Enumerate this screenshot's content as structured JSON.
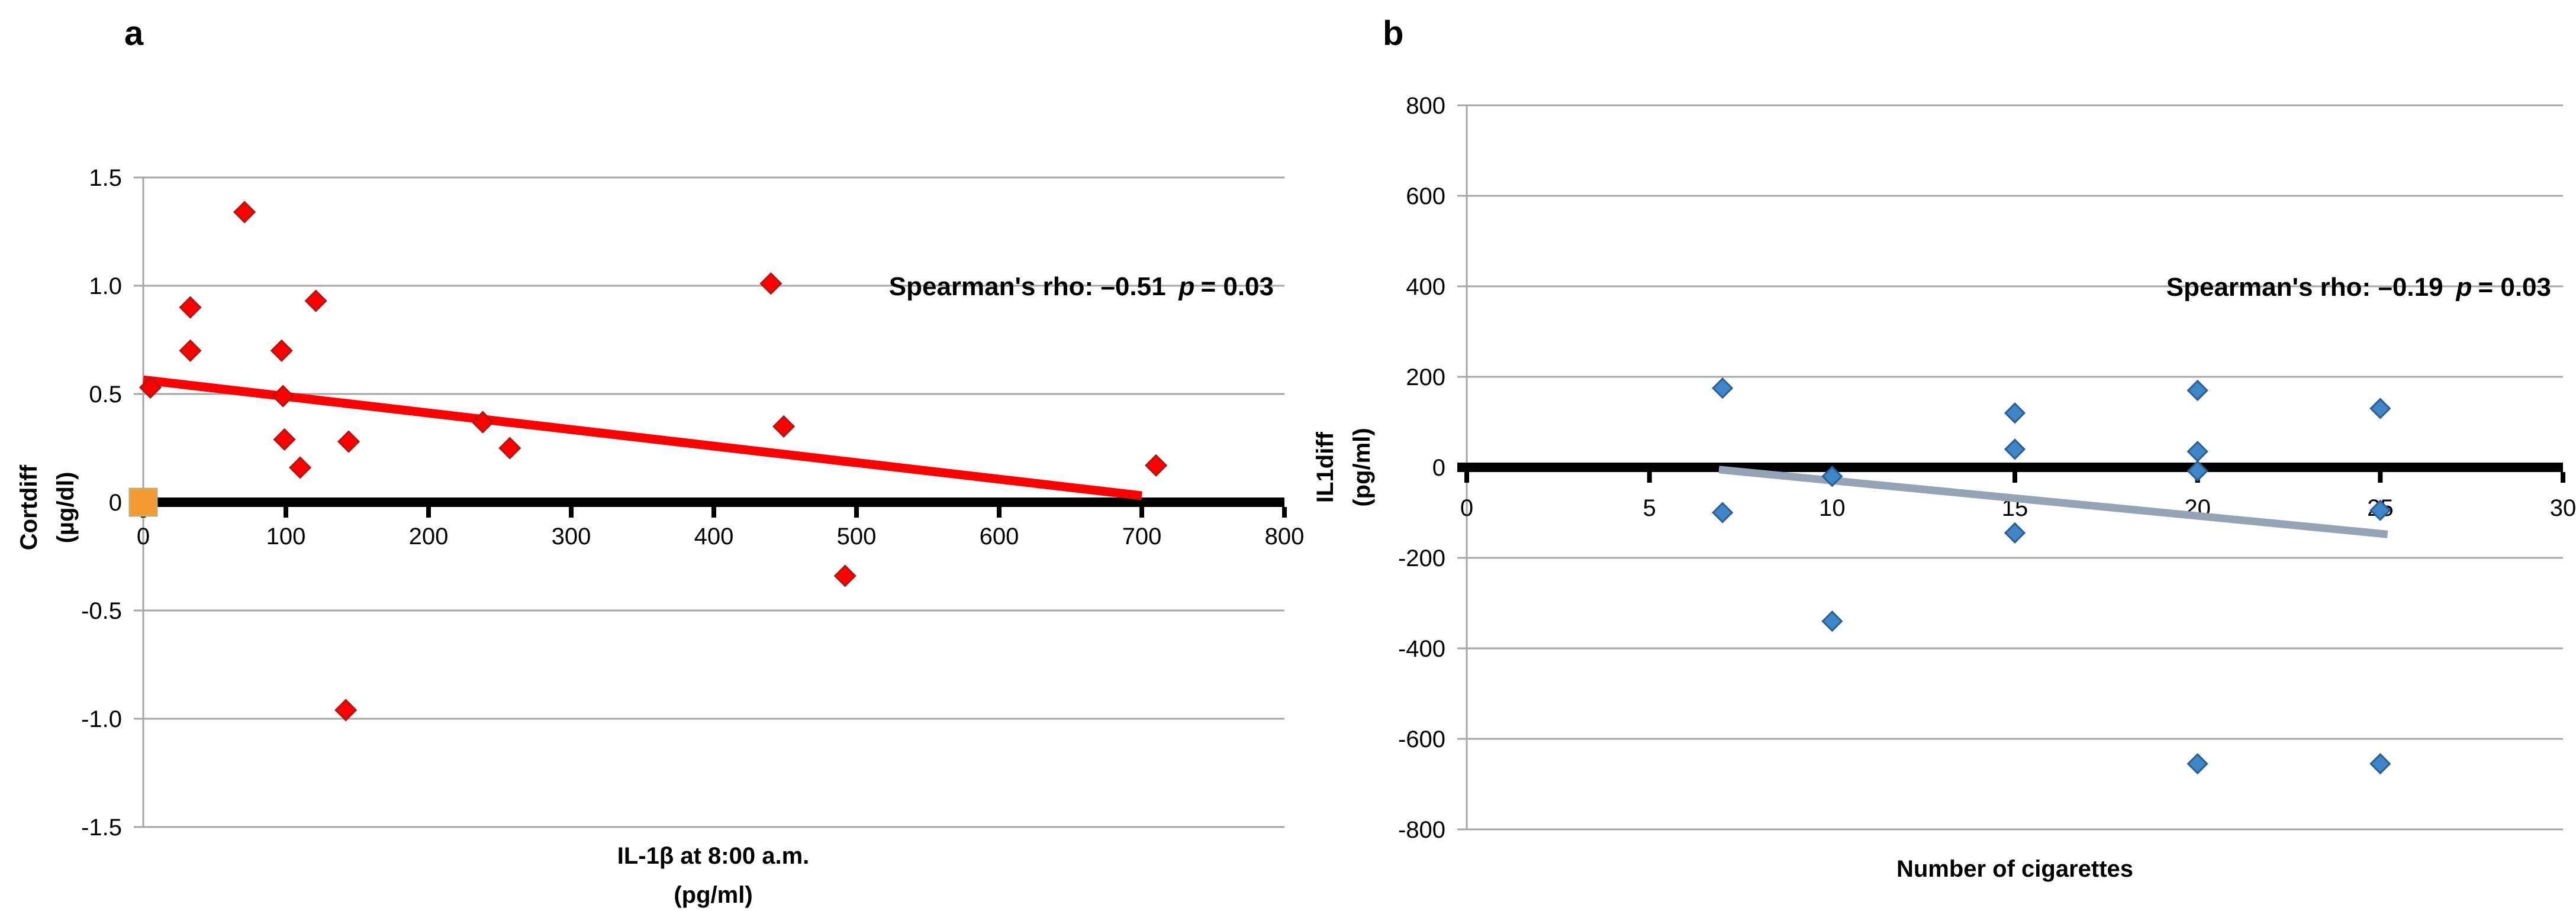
{
  "figure": {
    "background": "#FFFFFF"
  },
  "chart_data": [
    {
      "type": "scatter",
      "panel_label": "a",
      "xlabel_lines": [
        "IL-1β at 8:00 a.m.",
        "(pg/ml)"
      ],
      "ylabel_lines": [
        "Cortdiff",
        "(µg/dl)"
      ],
      "xlim": [
        0,
        800
      ],
      "ylim": [
        -1.5,
        1.5
      ],
      "x_tick_values": [
        0,
        100,
        200,
        300,
        400,
        500,
        600,
        700,
        800
      ],
      "x_tick_labels": [
        "0",
        "100",
        "200",
        "300",
        "400",
        "500",
        "600",
        "700",
        "800"
      ],
      "y_tick_values": [
        1.5,
        1.0,
        0.5,
        0,
        -0.5,
        -1.0,
        -1.5
      ],
      "y_tick_labels": [
        "1.5",
        "1.0",
        "0.5",
        "0",
        "-0.5",
        "-1.0",
        "-1.5"
      ],
      "grid": true,
      "grid_color": "#A6A6A6",
      "axis_color": "#000000",
      "legend_position": "none",
      "series": [
        {
          "name": "Cortdiff vs IL-1beta",
          "marker": "diamond",
          "color": "#FE0000",
          "border_color": "#B01712",
          "points": [
            [
              5,
              0.53
            ],
            [
              33,
              0.9
            ],
            [
              33,
              0.7
            ],
            [
              71,
              1.34
            ],
            [
              97,
              0.7
            ],
            [
              98,
              0.49
            ],
            [
              99,
              0.29
            ],
            [
              110,
              0.16
            ],
            [
              121,
              0.93
            ],
            [
              144,
              0.28
            ],
            [
              142,
              -0.96
            ],
            [
              238,
              0.37
            ],
            [
              257,
              0.25
            ],
            [
              440,
              1.01
            ],
            [
              449,
              0.35
            ],
            [
              492,
              -0.34
            ],
            [
              710,
              0.17
            ]
          ]
        },
        {
          "name": "origin square marker",
          "marker": "square",
          "color": "#F59A33",
          "border_color": "#BFAE6C",
          "points": [
            [
              0,
              0
            ]
          ]
        }
      ],
      "trendline": {
        "x1": 0,
        "y1": 0.565,
        "x2": 700,
        "y2": 0.03,
        "color": "#FF0000"
      },
      "annotation": {
        "text_prefix": "Spearman's rho: –0.51",
        "p_symbol": "p",
        "text_suffix": "= 0.03",
        "y": 1.0
      }
    },
    {
      "type": "scatter",
      "panel_label": "b",
      "xlabel_lines": [
        "Number of cigarettes"
      ],
      "ylabel_lines": [
        "IL1diff",
        "(pg/ml)"
      ],
      "xlim": [
        0,
        30
      ],
      "ylim": [
        -800,
        800
      ],
      "x_tick_values": [
        0,
        5,
        10,
        15,
        20,
        25,
        30
      ],
      "x_tick_labels": [
        "0",
        "5",
        "10",
        "15",
        "20",
        "25",
        "30"
      ],
      "y_tick_values": [
        800,
        600,
        400,
        200,
        0,
        -200,
        -400,
        -600,
        -800
      ],
      "y_tick_labels": [
        "800",
        "600",
        "400",
        "200",
        "0",
        "-200",
        "-400",
        "-600",
        "-800"
      ],
      "grid": true,
      "grid_color": "#A6A6A6",
      "axis_color": "#000000",
      "legend_position": "none",
      "series": [
        {
          "name": "IL1diff vs cigarettes",
          "marker": "diamond",
          "color": "#3E86C8",
          "border_color": "#2B5F94",
          "points": [
            [
              7,
              175
            ],
            [
              7,
              -100
            ],
            [
              10,
              -20
            ],
            [
              10,
              -340
            ],
            [
              15,
              120
            ],
            [
              15,
              40
            ],
            [
              15,
              -145
            ],
            [
              20,
              170
            ],
            [
              20,
              35
            ],
            [
              20,
              -8
            ],
            [
              20,
              -655
            ],
            [
              25,
              130
            ],
            [
              25,
              -95
            ],
            [
              25,
              -655
            ]
          ]
        }
      ],
      "trendline": {
        "x1": 6.9,
        "y1": -5,
        "x2": 25.2,
        "y2": -148,
        "color": "#94A3B6"
      },
      "annotation": {
        "text_prefix": "Spearman's rho: –0.19",
        "p_symbol": "p",
        "text_suffix": "= 0.03",
        "y": 400
      }
    }
  ]
}
